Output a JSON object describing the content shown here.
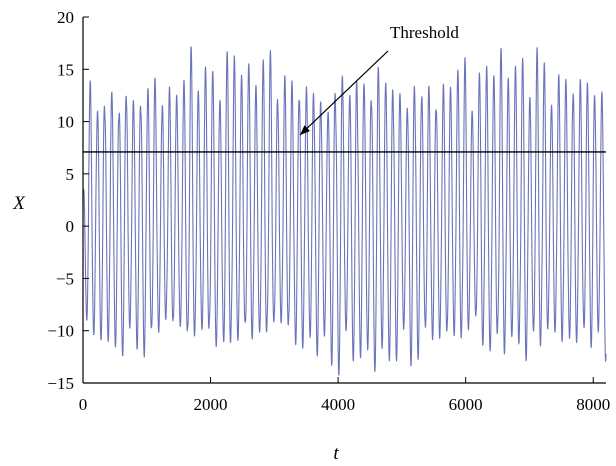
{
  "chart_data": {
    "type": "line",
    "xlabel": "t",
    "ylabel": "X",
    "xlim": [
      0,
      8200
    ],
    "ylim": [
      -15,
      20
    ],
    "x_ticks": [
      0,
      2000,
      4000,
      6000,
      8000
    ],
    "x_tick_labels": [
      "0",
      "2000",
      "4000",
      "6000",
      "8000"
    ],
    "y_ticks": [
      -15,
      -10,
      -5,
      0,
      5,
      10,
      15,
      20
    ],
    "y_tick_labels": [
      "−15",
      "−10",
      "−5",
      "0",
      "5",
      "10",
      "15",
      "20"
    ],
    "grid": false,
    "colors": {
      "series": "#6b74b8",
      "threshold": "#000000",
      "axes": "#000000"
    },
    "threshold": {
      "y": 7.1,
      "label": "Threshold",
      "arrow_target_x": 3350
    },
    "series": [
      {
        "approx_period": 113,
        "peak_max": [
          [
            0,
            4
          ],
          [
            120,
            17.3
          ],
          [
            260,
            12.5
          ],
          [
            400,
            16.8
          ],
          [
            560,
            14.5
          ],
          [
            700,
            17.2
          ],
          [
            900,
            15.5
          ],
          [
            1100,
            17.2
          ],
          [
            1400,
            13.5
          ],
          [
            1700,
            17.2
          ],
          [
            2000,
            14.5
          ],
          [
            2300,
            17
          ],
          [
            2600,
            15.5
          ],
          [
            2900,
            17.2
          ],
          [
            3200,
            16
          ],
          [
            3500,
            17.2
          ],
          [
            3800,
            14.5
          ],
          [
            4100,
            17
          ],
          [
            4400,
            15.5
          ],
          [
            4700,
            17.3
          ],
          [
            5000,
            14.8
          ],
          [
            5300,
            17.2
          ],
          [
            5600,
            15
          ],
          [
            5900,
            17.2
          ],
          [
            6200,
            14.5
          ],
          [
            6500,
            17.3
          ],
          [
            6800,
            15.5
          ],
          [
            7100,
            17.2
          ],
          [
            7400,
            15
          ],
          [
            7700,
            17.3
          ],
          [
            8000,
            16
          ],
          [
            8200,
            17
          ]
        ],
        "trough_min": [
          [
            0,
            -4
          ],
          [
            120,
            -14.3
          ],
          [
            300,
            -10.5
          ],
          [
            500,
            -13
          ],
          [
            700,
            -12
          ],
          [
            1000,
            -14.2
          ],
          [
            1300,
            -11.5
          ],
          [
            1600,
            -13.8
          ],
          [
            1900,
            -12.2
          ],
          [
            2200,
            -14
          ],
          [
            2500,
            -12.5
          ],
          [
            2800,
            -13.5
          ],
          [
            3100,
            -11.8
          ],
          [
            3400,
            -14
          ],
          [
            3700,
            -12.5
          ],
          [
            4000,
            -14.3
          ],
          [
            4300,
            -12.5
          ],
          [
            4600,
            -14
          ],
          [
            4900,
            -12.8
          ],
          [
            5200,
            -14.2
          ],
          [
            5500,
            -12.5
          ],
          [
            5800,
            -14
          ],
          [
            6100,
            -11.5
          ],
          [
            6400,
            -13.8
          ],
          [
            6700,
            -12.5
          ],
          [
            7000,
            -14.2
          ],
          [
            7300,
            -12
          ],
          [
            7600,
            -14
          ],
          [
            7900,
            -12.5
          ],
          [
            8200,
            -13.8
          ]
        ]
      }
    ]
  }
}
